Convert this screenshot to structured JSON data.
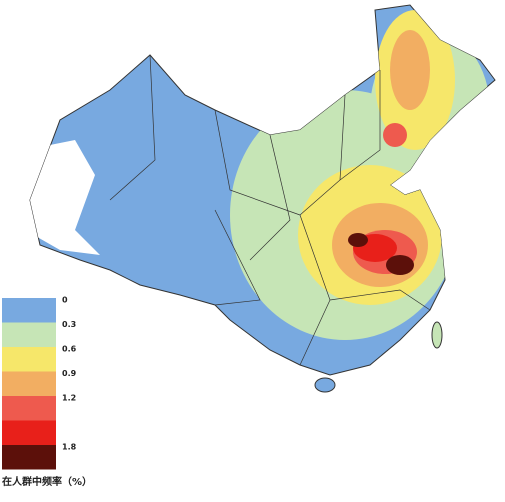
{
  "legend": {
    "title": "在人群中频率（%）",
    "colors": [
      "#78a9e0",
      "#c6e5b6",
      "#f6e76a",
      "#f2ae62",
      "#ee5a4e",
      "#e8201a",
      "#5c100a"
    ],
    "ticks": [
      0,
      0.3,
      0.6,
      0.9,
      1.2,
      1.8
    ]
  }
}
